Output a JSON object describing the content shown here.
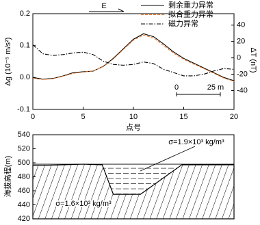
{
  "chart_data": [
    {
      "type": "line",
      "x_label": "点号",
      "y_label": "Δg (10⁻⁵ m/s²)",
      "y2_label": "ΔT (nT)",
      "annotations": [
        "E",
        "0",
        "25 m"
      ],
      "legend": "upper right",
      "x": [
        0,
        1,
        2,
        3,
        4,
        5,
        6,
        7,
        8,
        9,
        10,
        11,
        12,
        13,
        14,
        15,
        16,
        17,
        18,
        19,
        20
      ],
      "xlim": [
        0,
        20
      ],
      "xticks": [
        0,
        5,
        10,
        15,
        20
      ],
      "ylim": [
        -0.1,
        0.2
      ],
      "yticks": [
        -0.1,
        {
          "value": 0,
          "label": "0.0"
        },
        0.1,
        0.2
      ],
      "y2lim": [
        -63,
        54
      ],
      "y2ticks": [
        -40,
        -20,
        0,
        20,
        40
      ],
      "series": [
        {
          "name": "剩余重力异常",
          "color": "#000000",
          "style": "solid",
          "values": [
            0.0,
            -0.005,
            -0.003,
            0.005,
            0.015,
            0.018,
            0.02,
            0.035,
            0.06,
            0.09,
            0.12,
            0.137,
            0.128,
            0.105,
            0.08,
            0.06,
            0.045,
            0.03,
            0.015,
            0.0,
            -0.01
          ]
        },
        {
          "name": "拟合重力异常",
          "color": "#f07b2c",
          "style": "dashed",
          "values": [
            -0.003,
            -0.006,
            -0.004,
            0.004,
            0.013,
            0.017,
            0.021,
            0.034,
            0.058,
            0.088,
            0.117,
            0.133,
            0.124,
            0.1,
            0.076,
            0.057,
            0.042,
            0.028,
            0.013,
            -0.002,
            -0.012
          ]
        },
        {
          "name": "磁力异常",
          "color": "#000000",
          "style": "dashdot",
          "axis": "y2",
          "values": [
            16,
            5,
            3,
            4,
            6,
            7,
            4,
            -4,
            -8,
            -9,
            -8,
            -5,
            -7,
            -14,
            -18,
            -22,
            -22,
            -20,
            -16,
            -13,
            -14
          ]
        }
      ]
    },
    {
      "type": "area",
      "y_label": "海拔高程(m)",
      "annotations": [
        "σ=1.9×10³ kg/m³",
        "σ=1.6×10³ kg/m³"
      ],
      "x": [
        0,
        3,
        5,
        6.9,
        8,
        10.7,
        14.8,
        20
      ],
      "xlim": [
        0,
        20
      ],
      "ylim": [
        420,
        540
      ],
      "yticks": [
        420,
        440,
        460,
        480,
        500,
        520,
        540
      ],
      "series": [
        {
          "color": "#000000",
          "values": [
            496,
            497,
            498,
            497,
            455,
            455,
            497,
            497
          ]
        }
      ]
    }
  ]
}
